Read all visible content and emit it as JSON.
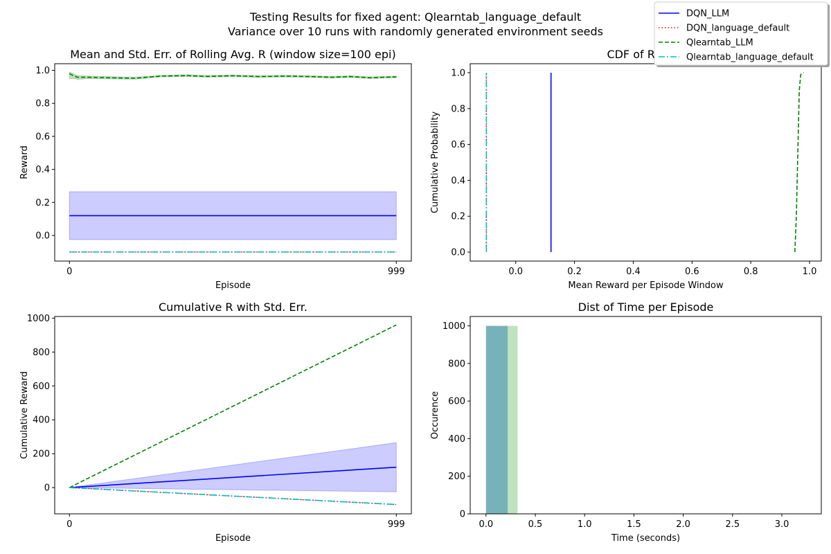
{
  "figure": {
    "suptitle_line1": "Testing Results for fixed agent: Qlearntab_language_default",
    "suptitle_line2": "Variance over 10 runs with randomly generated environment seeds"
  },
  "legend": [
    {
      "name": "DQN_LLM",
      "color": "#0000ff",
      "style": "solid"
    },
    {
      "name": "DQN_language_default",
      "color": "#ff0000",
      "style": "dotted"
    },
    {
      "name": "Qlearntab_LLM",
      "color": "#008000",
      "style": "dashed"
    },
    {
      "name": "Qlearntab_language_default",
      "color": "#00bfbf",
      "style": "dashdot"
    }
  ],
  "chart_data": [
    {
      "type": "line",
      "title": "Mean and Std. Err. of Rolling Avg. R (window size=100 epi)",
      "xlabel": "Episode",
      "ylabel": "Reward",
      "xlim": [
        -45,
        1045
      ],
      "ylim": [
        -0.155,
        1.04
      ],
      "xticks": [
        0,
        999
      ],
      "xtick_labels": [
        "0",
        "999"
      ],
      "yticks": [
        0.0,
        0.2,
        0.4,
        0.6,
        0.8,
        1.0
      ],
      "ytick_labels": [
        "0.0",
        "0.2",
        "0.4",
        "0.6",
        "0.8",
        "1.0"
      ],
      "series": [
        {
          "name": "DQN_LLM",
          "x": [
            0,
            999
          ],
          "values": [
            0.12,
            0.12
          ],
          "band": {
            "lower": [
              -0.025,
              -0.025
            ],
            "upper": [
              0.265,
              0.265
            ]
          }
        },
        {
          "name": "DQN_language_default",
          "x": [
            0,
            999
          ],
          "values": [
            -0.1,
            -0.1
          ]
        },
        {
          "name": "Qlearntab_LLM",
          "x": [
            0,
            15,
            25,
            60,
            120,
            200,
            280,
            360,
            420,
            500,
            580,
            660,
            740,
            800,
            860,
            920,
            960,
            999
          ],
          "values": [
            0.98,
            0.965,
            0.958,
            0.958,
            0.955,
            0.952,
            0.965,
            0.968,
            0.963,
            0.967,
            0.962,
            0.965,
            0.962,
            0.958,
            0.962,
            0.955,
            0.958,
            0.96
          ],
          "band": {
            "lower": [
              0.95,
              0.95,
              0.945,
              0.95,
              0.948,
              0.946,
              0.96,
              0.963,
              0.958,
              0.962,
              0.957,
              0.96,
              0.957,
              0.953,
              0.957,
              0.95,
              0.953,
              0.955
            ],
            "upper": [
              0.99,
              0.975,
              0.968,
              0.965,
              0.962,
              0.958,
              0.97,
              0.973,
              0.968,
              0.972,
              0.967,
              0.97,
              0.967,
              0.963,
              0.967,
              0.96,
              0.963,
              0.965
            ]
          }
        },
        {
          "name": "Qlearntab_language_default",
          "x": [
            0,
            999
          ],
          "values": [
            -0.1,
            -0.1
          ]
        }
      ]
    },
    {
      "type": "line",
      "title": "CDF of Rolling",
      "xlabel": "Mean Reward per Episode Window",
      "ylabel": "Cumulative Probability",
      "xlim": [
        -0.155,
        1.04
      ],
      "ylim": [
        -0.05,
        1.05
      ],
      "xticks": [
        0.0,
        0.2,
        0.4,
        0.6,
        0.8,
        1.0
      ],
      "xtick_labels": [
        "0.0",
        "0.2",
        "0.4",
        "0.6",
        "0.8",
        "1.0"
      ],
      "yticks": [
        0.0,
        0.2,
        0.4,
        0.6,
        0.8,
        1.0
      ],
      "ytick_labels": [
        "0.0",
        "0.2",
        "0.4",
        "0.6",
        "0.8",
        "1.0"
      ],
      "series": [
        {
          "name": "DQN_LLM",
          "x": [
            0.12,
            0.12
          ],
          "values": [
            0.0,
            1.0
          ]
        },
        {
          "name": "DQN_language_default",
          "x": [
            -0.1,
            -0.1
          ],
          "values": [
            0.0,
            1.0
          ]
        },
        {
          "name": "Qlearntab_LLM",
          "x": [
            0.95,
            0.955,
            0.96,
            0.965,
            0.97,
            0.98
          ],
          "values": [
            0.0,
            0.2,
            0.55,
            0.9,
            0.99,
            1.0
          ]
        },
        {
          "name": "Qlearntab_language_default",
          "x": [
            -0.1,
            -0.1
          ],
          "values": [
            0.0,
            1.0
          ]
        }
      ]
    },
    {
      "type": "line",
      "title": "Cumulative R with Std. Err.",
      "xlabel": "Episode",
      "ylabel": "Cumulative Reward",
      "xlim": [
        -45,
        1045
      ],
      "ylim": [
        -155,
        1010
      ],
      "xticks": [
        0,
        999
      ],
      "xtick_labels": [
        "0",
        "999"
      ],
      "yticks": [
        0,
        200,
        400,
        600,
        800,
        1000
      ],
      "ytick_labels": [
        "0",
        "200",
        "400",
        "600",
        "800",
        "1000"
      ],
      "series": [
        {
          "name": "DQN_LLM",
          "x": [
            0,
            999
          ],
          "values": [
            0,
            120
          ],
          "band": {
            "lower": [
              0,
              -25
            ],
            "upper": [
              0,
              265
            ]
          }
        },
        {
          "name": "DQN_language_default",
          "x": [
            0,
            999
          ],
          "values": [
            0,
            -100
          ]
        },
        {
          "name": "Qlearntab_LLM",
          "x": [
            0,
            999
          ],
          "values": [
            0,
            960
          ]
        },
        {
          "name": "Qlearntab_language_default",
          "x": [
            0,
            999
          ],
          "values": [
            0,
            -100
          ]
        }
      ]
    },
    {
      "type": "bar",
      "title": "Dist of Time per Episode",
      "xlabel": "Time (seconds)",
      "ylabel": "Occurence",
      "xlim": [
        -0.16,
        3.4
      ],
      "ylim": [
        0,
        1050
      ],
      "xticks": [
        0.0,
        0.5,
        1.0,
        1.5,
        2.0,
        2.5,
        3.0
      ],
      "xtick_labels": [
        "0.0",
        "0.5",
        "1.0",
        "1.5",
        "2.0",
        "2.5",
        "3.0"
      ],
      "yticks": [
        0,
        200,
        400,
        600,
        800,
        1000
      ],
      "ytick_labels": [
        "0",
        "200",
        "400",
        "600",
        "800",
        "1000"
      ],
      "series": [
        {
          "name": "Qlearntab_LLM",
          "color": "#2ca02c",
          "opacity": 0.3,
          "bins": [
            {
              "x0": 0.0,
              "x1": 0.32,
              "count": 1000
            },
            {
              "x0": 2.9,
              "x1": 3.25,
              "count": 1
            }
          ]
        },
        {
          "name": "Qlearntab_language_default",
          "color": "#1f77b4",
          "opacity": 0.45,
          "bins": [
            {
              "x0": 0.0,
              "x1": 0.22,
              "count": 1000
            },
            {
              "x0": 2.0,
              "x1": 2.2,
              "count": 1
            }
          ]
        }
      ]
    }
  ]
}
